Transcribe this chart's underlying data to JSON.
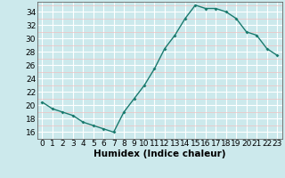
{
  "x": [
    0,
    1,
    2,
    3,
    4,
    5,
    6,
    7,
    8,
    9,
    10,
    11,
    12,
    13,
    14,
    15,
    16,
    17,
    18,
    19,
    20,
    21,
    22,
    23
  ],
  "y": [
    20.5,
    19.5,
    19.0,
    18.5,
    17.5,
    17.0,
    16.5,
    16.0,
    19.0,
    21.0,
    23.0,
    25.5,
    28.5,
    30.5,
    33.0,
    35.0,
    34.5,
    34.5,
    34.0,
    33.0,
    31.0,
    30.5,
    28.5,
    27.5
  ],
  "line_color": "#1a7a6e",
  "marker": "D",
  "marker_size": 2.0,
  "bg_color": "#cce9ec",
  "grid_major_color": "#ffffff",
  "grid_minor_color": "#f0c0c0",
  "xlabel": "Humidex (Indice chaleur)",
  "ylim": [
    15.0,
    35.5
  ],
  "xlim": [
    -0.5,
    23.5
  ],
  "yticks": [
    16,
    18,
    20,
    22,
    24,
    26,
    28,
    30,
    32,
    34
  ],
  "xtick_labels": [
    "0",
    "1",
    "2",
    "3",
    "4",
    "5",
    "6",
    "7",
    "8",
    "9",
    "10",
    "11",
    "12",
    "13",
    "14",
    "15",
    "16",
    "17",
    "18",
    "19",
    "20",
    "21",
    "22",
    "23"
  ],
  "xlabel_fontsize": 7.5,
  "tick_fontsize": 6.5,
  "linewidth": 1.0
}
